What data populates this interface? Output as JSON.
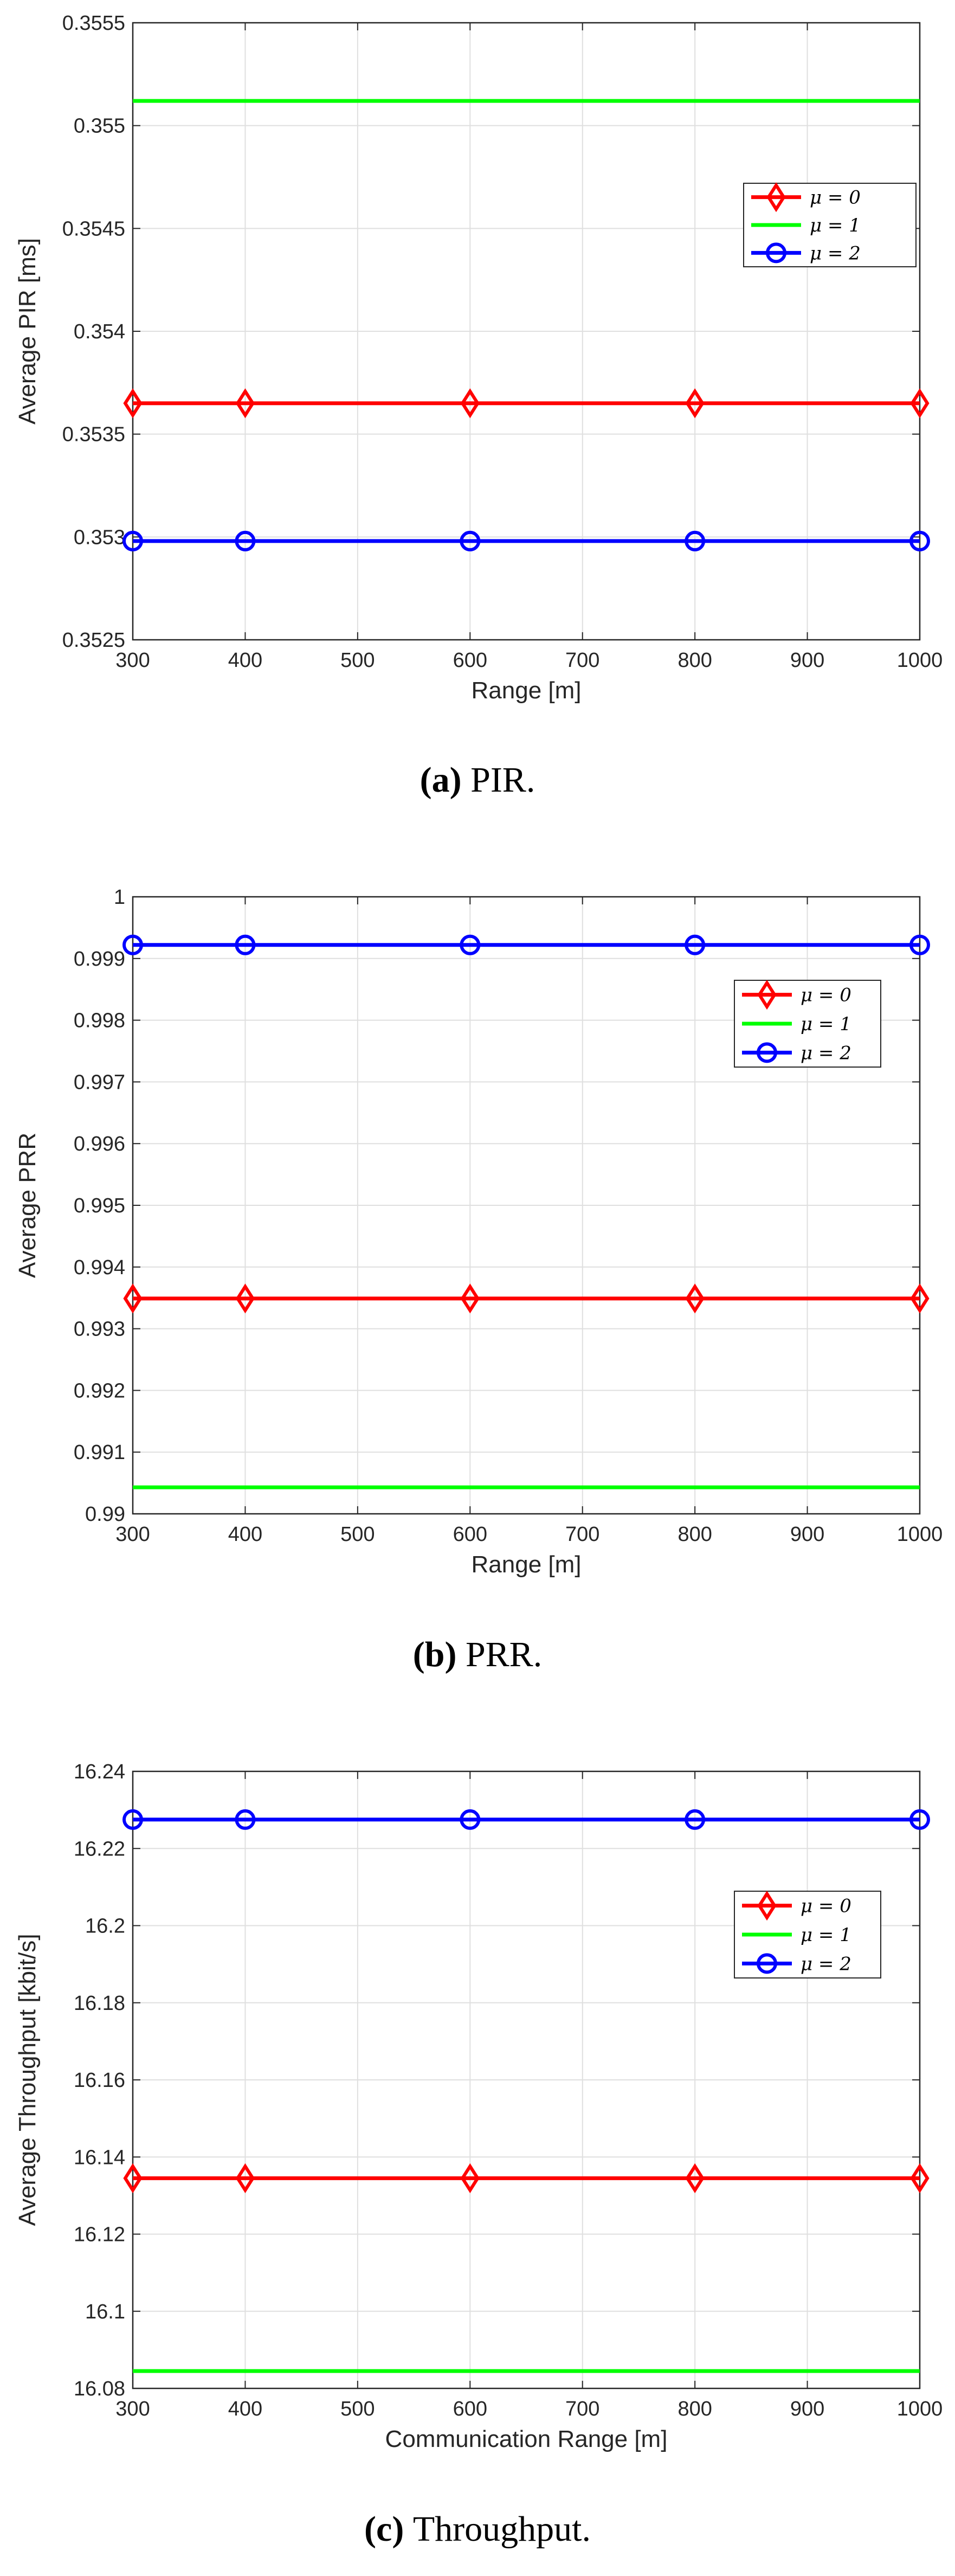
{
  "chart_data": [
    {
      "type": "line",
      "caption_tag": "(a)",
      "caption_text": "PIR.",
      "xlabel": "Range [m]",
      "ylabel": "Average PIR [ms]",
      "xlim": [
        300,
        1000
      ],
      "ylim": [
        0.3525,
        0.3555
      ],
      "xticks": [
        300,
        400,
        500,
        600,
        700,
        800,
        900,
        1000
      ],
      "xtick_labels": [
        "300",
        "400",
        "500",
        "600",
        "700",
        "800",
        "900",
        "1000"
      ],
      "yticks": [
        0.3525,
        0.353,
        0.3535,
        0.354,
        0.3545,
        0.355,
        0.3555
      ],
      "ytick_labels": [
        "0.3525",
        "0.353",
        "0.3535",
        "0.354",
        "0.3545",
        "0.355",
        "0.3555"
      ],
      "grid": true,
      "legend_position": "right",
      "x": [
        300,
        400,
        600,
        800,
        1000
      ],
      "series": [
        {
          "name": "μ = 0",
          "color": "#ff0000",
          "marker": "diamond",
          "values": [
            0.35365,
            0.35365,
            0.35365,
            0.35365,
            0.35365
          ]
        },
        {
          "name": "μ = 1",
          "color": "#00ff00",
          "marker": "none",
          "values": [
            0.35512,
            0.35512,
            0.35512,
            0.35512,
            0.35512
          ]
        },
        {
          "name": "μ = 2",
          "color": "#0000ff",
          "marker": "circle",
          "values": [
            0.35298,
            0.35298,
            0.35298,
            0.35298,
            0.35298
          ]
        }
      ]
    },
    {
      "type": "line",
      "caption_tag": "(b)",
      "caption_text": "PRR.",
      "xlabel": "Range [m]",
      "ylabel": "Average PRR",
      "xlim": [
        300,
        1000
      ],
      "ylim": [
        0.99,
        1.0
      ],
      "xticks": [
        300,
        400,
        500,
        600,
        700,
        800,
        900,
        1000
      ],
      "xtick_labels": [
        "300",
        "400",
        "500",
        "600",
        "700",
        "800",
        "900",
        "1000"
      ],
      "yticks": [
        0.99,
        0.991,
        0.992,
        0.993,
        0.994,
        0.995,
        0.996,
        0.997,
        0.998,
        0.999,
        1.0
      ],
      "ytick_labels": [
        "0.99",
        "0.991",
        "0.992",
        "0.993",
        "0.994",
        "0.995",
        "0.996",
        "0.997",
        "0.998",
        "0.999",
        "1"
      ],
      "grid": true,
      "legend_position": "right",
      "x": [
        300,
        400,
        600,
        800,
        1000
      ],
      "series": [
        {
          "name": "μ = 0",
          "color": "#ff0000",
          "marker": "diamond",
          "values": [
            0.99349,
            0.99349,
            0.99349,
            0.99349,
            0.99349
          ]
        },
        {
          "name": "μ = 1",
          "color": "#00ff00",
          "marker": "none",
          "values": [
            0.99043,
            0.99043,
            0.99043,
            0.99043,
            0.99043
          ]
        },
        {
          "name": "μ = 2",
          "color": "#0000ff",
          "marker": "circle",
          "values": [
            0.99922,
            0.99922,
            0.99922,
            0.99922,
            0.99922
          ]
        }
      ]
    },
    {
      "type": "line",
      "caption_tag": "(c)",
      "caption_text": "Throughput.",
      "xlabel": "Communication Range [m]",
      "ylabel": "Average Throughput [kbit/s]",
      "xlim": [
        300,
        1000
      ],
      "ylim": [
        16.08,
        16.24
      ],
      "xticks": [
        300,
        400,
        500,
        600,
        700,
        800,
        900,
        1000
      ],
      "xtick_labels": [
        "300",
        "400",
        "500",
        "600",
        "700",
        "800",
        "900",
        "1000"
      ],
      "yticks": [
        16.08,
        16.1,
        16.12,
        16.14,
        16.16,
        16.18,
        16.2,
        16.22,
        16.24
      ],
      "ytick_labels": [
        "16.08",
        "16.1",
        "16.12",
        "16.14",
        "16.16",
        "16.18",
        "16.2",
        "16.22",
        "16.24"
      ],
      "grid": true,
      "legend_position": "right",
      "x": [
        300,
        400,
        600,
        800,
        1000
      ],
      "series": [
        {
          "name": "μ = 0",
          "color": "#ff0000",
          "marker": "diamond",
          "values": [
            16.1345,
            16.1345,
            16.1345,
            16.1345,
            16.1345
          ]
        },
        {
          "name": "μ = 1",
          "color": "#00ff00",
          "marker": "none",
          "values": [
            16.0845,
            16.0845,
            16.0845,
            16.0845,
            16.0845
          ]
        },
        {
          "name": "μ = 2",
          "color": "#0000ff",
          "marker": "circle",
          "values": [
            16.2275,
            16.2275,
            16.2275,
            16.2275,
            16.2275
          ]
        }
      ]
    }
  ]
}
